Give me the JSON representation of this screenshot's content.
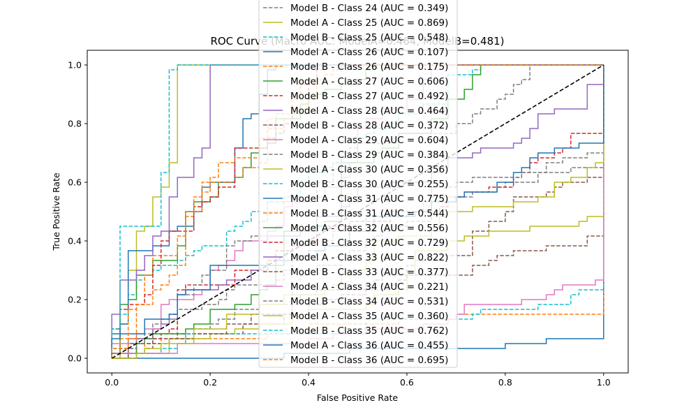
{
  "chart_data": {
    "type": "line",
    "title": "ROC Curve (Macro AUC: ModelA=0.464, ModelB=0.481)",
    "xlabel": "False Positive Rate",
    "ylabel": "True Positive Rate",
    "xlim": [
      -0.05,
      1.05
    ],
    "ylim": [
      -0.05,
      1.05
    ],
    "xticks": [
      "0.0",
      "0.2",
      "0.4",
      "0.6",
      "0.8",
      "1.0"
    ],
    "yticks": [
      "0.0",
      "0.2",
      "0.4",
      "0.6",
      "0.8",
      "1.0"
    ],
    "grid": false,
    "legend_position": "center-top",
    "chance_line": {
      "x": [
        0,
        1
      ],
      "y": [
        0,
        1
      ],
      "color": "#000000",
      "style": "dashed"
    },
    "series": [
      {
        "name": "Model B - Class 24 (AUC = 0.349)",
        "model": "B",
        "auc": 0.349,
        "color": "#7f7f7f",
        "style": "dashed"
      },
      {
        "name": "Model A - Class 25 (AUC = 0.869)",
        "model": "A",
        "auc": 0.869,
        "color": "#bcbd22",
        "style": "solid"
      },
      {
        "name": "Model B - Class 25 (AUC = 0.548)",
        "model": "B",
        "auc": 0.548,
        "color": "#17becf",
        "style": "dashed"
      },
      {
        "name": "Model A - Class 26 (AUC = 0.107)",
        "model": "A",
        "auc": 0.107,
        "color": "#1f77b4",
        "style": "solid"
      },
      {
        "name": "Model B - Class 26 (AUC = 0.175)",
        "model": "B",
        "auc": 0.175,
        "color": "#ff7f0e",
        "style": "dashed"
      },
      {
        "name": "Model A - Class 27 (AUC = 0.606)",
        "model": "A",
        "auc": 0.606,
        "color": "#2ca02c",
        "style": "solid"
      },
      {
        "name": "Model B - Class 27 (AUC = 0.492)",
        "model": "B",
        "auc": 0.492,
        "color": "#d62728",
        "style": "dashed"
      },
      {
        "name": "Model A - Class 28 (AUC = 0.464)",
        "model": "A",
        "auc": 0.464,
        "color": "#9467bd",
        "style": "solid"
      },
      {
        "name": "Model B - Class 28 (AUC = 0.372)",
        "model": "B",
        "auc": 0.372,
        "color": "#8c564b",
        "style": "dashed"
      },
      {
        "name": "Model A - Class 29 (AUC = 0.604)",
        "model": "A",
        "auc": 0.604,
        "color": "#e377c2",
        "style": "solid"
      },
      {
        "name": "Model B - Class 29 (AUC = 0.384)",
        "model": "B",
        "auc": 0.384,
        "color": "#7f7f7f",
        "style": "dashed"
      },
      {
        "name": "Model A - Class 30 (AUC = 0.356)",
        "model": "A",
        "auc": 0.356,
        "color": "#bcbd22",
        "style": "solid"
      },
      {
        "name": "Model B - Class 30 (AUC = 0.255)",
        "model": "B",
        "auc": 0.255,
        "color": "#17becf",
        "style": "dashed"
      },
      {
        "name": "Model A - Class 31 (AUC = 0.775)",
        "model": "A",
        "auc": 0.775,
        "color": "#1f77b4",
        "style": "solid"
      },
      {
        "name": "Model B - Class 31 (AUC = 0.544)",
        "model": "B",
        "auc": 0.544,
        "color": "#ff7f0e",
        "style": "dashed"
      },
      {
        "name": "Model A - Class 32 (AUC = 0.556)",
        "model": "A",
        "auc": 0.556,
        "color": "#2ca02c",
        "style": "solid"
      },
      {
        "name": "Model B - Class 32 (AUC = 0.729)",
        "model": "B",
        "auc": 0.729,
        "color": "#d62728",
        "style": "dashed"
      },
      {
        "name": "Model A - Class 33 (AUC = 0.822)",
        "model": "A",
        "auc": 0.822,
        "color": "#9467bd",
        "style": "solid"
      },
      {
        "name": "Model B - Class 33 (AUC = 0.377)",
        "model": "B",
        "auc": 0.377,
        "color": "#8c564b",
        "style": "dashed"
      },
      {
        "name": "Model A - Class 34 (AUC = 0.221)",
        "model": "A",
        "auc": 0.221,
        "color": "#e377c2",
        "style": "solid"
      },
      {
        "name": "Model B - Class 34 (AUC = 0.531)",
        "model": "B",
        "auc": 0.531,
        "color": "#7f7f7f",
        "style": "dashed"
      },
      {
        "name": "Model A - Class 35 (AUC = 0.360)",
        "model": "A",
        "auc": 0.36,
        "color": "#bcbd22",
        "style": "solid"
      },
      {
        "name": "Model B - Class 35 (AUC = 0.762)",
        "model": "B",
        "auc": 0.762,
        "color": "#17becf",
        "style": "dashed"
      },
      {
        "name": "Model A - Class 36 (AUC = 0.455)",
        "model": "A",
        "auc": 0.455,
        "color": "#1f77b4",
        "style": "solid"
      },
      {
        "name": "Model B - Class 36 (AUC = 0.695)",
        "model": "B",
        "auc": 0.695,
        "color": "#ff7f0e",
        "style": "dashed"
      }
    ]
  }
}
